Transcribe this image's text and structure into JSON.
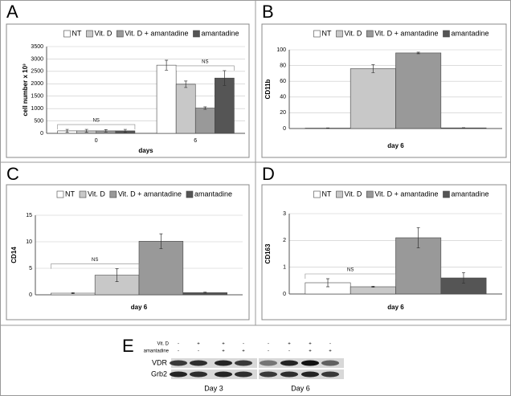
{
  "chart_data": [
    {
      "type": "bar",
      "panel_label": "A",
      "y_label": "cell number x 10³",
      "x_label": "days",
      "categories": [
        "0",
        "6"
      ],
      "ylim": [
        0,
        3500
      ],
      "yticks": [
        0,
        500,
        1000,
        1500,
        2000,
        2500,
        3000,
        3500
      ],
      "grid": true,
      "annotations": [
        "NS",
        "NS"
      ],
      "series": [
        {
          "name": "NT",
          "color": "#ffffff",
          "values": [
            100,
            2750
          ],
          "errors": [
            60,
            200
          ]
        },
        {
          "name": "Vit. D",
          "color": "#c8c8c8",
          "values": [
            100,
            1980
          ],
          "errors": [
            60,
            130
          ]
        },
        {
          "name": "Vit. D + amantadine",
          "color": "#999999",
          "values": [
            100,
            1020
          ],
          "errors": [
            50,
            50
          ]
        },
        {
          "name": "amantadine",
          "color": "#555555",
          "values": [
            100,
            2230
          ],
          "errors": [
            60,
            300
          ]
        }
      ]
    },
    {
      "type": "bar",
      "panel_label": "B",
      "y_label": "CD11b",
      "x_label": "day 6",
      "ylim": [
        0,
        100
      ],
      "yticks": [
        0,
        20,
        40,
        60,
        80,
        100
      ],
      "grid": true,
      "series": [
        {
          "name": "NT",
          "color": "#ffffff",
          "values": [
            0.5
          ],
          "errors": [
            0.3
          ]
        },
        {
          "name": "Vit. D",
          "color": "#c8c8c8",
          "values": [
            76
          ],
          "errors": [
            5
          ]
        },
        {
          "name": "Vit. D + amantadine",
          "color": "#999999",
          "values": [
            96
          ],
          "errors": [
            1
          ]
        },
        {
          "name": "amantadine",
          "color": "#555555",
          "values": [
            0.8
          ],
          "errors": [
            0.3
          ]
        }
      ]
    },
    {
      "type": "bar",
      "panel_label": "C",
      "y_label": "CD14",
      "x_label": "day 6",
      "ylim": [
        0,
        15
      ],
      "yticks": [
        0,
        5,
        10,
        15
      ],
      "grid": true,
      "annotations": [
        "NS"
      ],
      "series": [
        {
          "name": "NT",
          "color": "#ffffff",
          "values": [
            0.3
          ],
          "errors": [
            0.1
          ]
        },
        {
          "name": "Vit. D",
          "color": "#c8c8c8",
          "values": [
            3.7
          ],
          "errors": [
            1.2
          ]
        },
        {
          "name": "Vit. D + amantadine",
          "color": "#999999",
          "values": [
            10.1
          ],
          "errors": [
            1.4
          ]
        },
        {
          "name": "amantadine",
          "color": "#555555",
          "values": [
            0.4
          ],
          "errors": [
            0.1
          ]
        }
      ]
    },
    {
      "type": "bar",
      "panel_label": "D",
      "y_label": "CD163",
      "x_label": "day 6",
      "ylim": [
        0,
        3
      ],
      "yticks": [
        0,
        1,
        2,
        3
      ],
      "grid": true,
      "annotations": [
        "NS"
      ],
      "series": [
        {
          "name": "NT",
          "color": "#ffffff",
          "values": [
            0.42
          ],
          "errors": [
            0.15
          ]
        },
        {
          "name": "Vit. D",
          "color": "#c8c8c8",
          "values": [
            0.27
          ],
          "errors": [
            0.02
          ]
        },
        {
          "name": "Vit. D + amantadine",
          "color": "#999999",
          "values": [
            2.1
          ],
          "errors": [
            0.38
          ]
        },
        {
          "name": "amantadine",
          "color": "#555555",
          "values": [
            0.6
          ],
          "errors": [
            0.2
          ]
        }
      ]
    }
  ],
  "blot": {
    "panel_label": "E",
    "conditions": [
      {
        "name": "Vit. D",
        "signs": [
          "-",
          "+",
          "+",
          "-",
          "-",
          "+",
          "+",
          "-"
        ]
      },
      {
        "name": "amantadine",
        "signs": [
          "-",
          "-",
          "+",
          "+",
          "-",
          "-",
          "+",
          "+"
        ]
      }
    ],
    "bands": [
      "VDR",
      "Grb2"
    ],
    "groups": [
      "Day 3",
      "Day 6"
    ]
  }
}
